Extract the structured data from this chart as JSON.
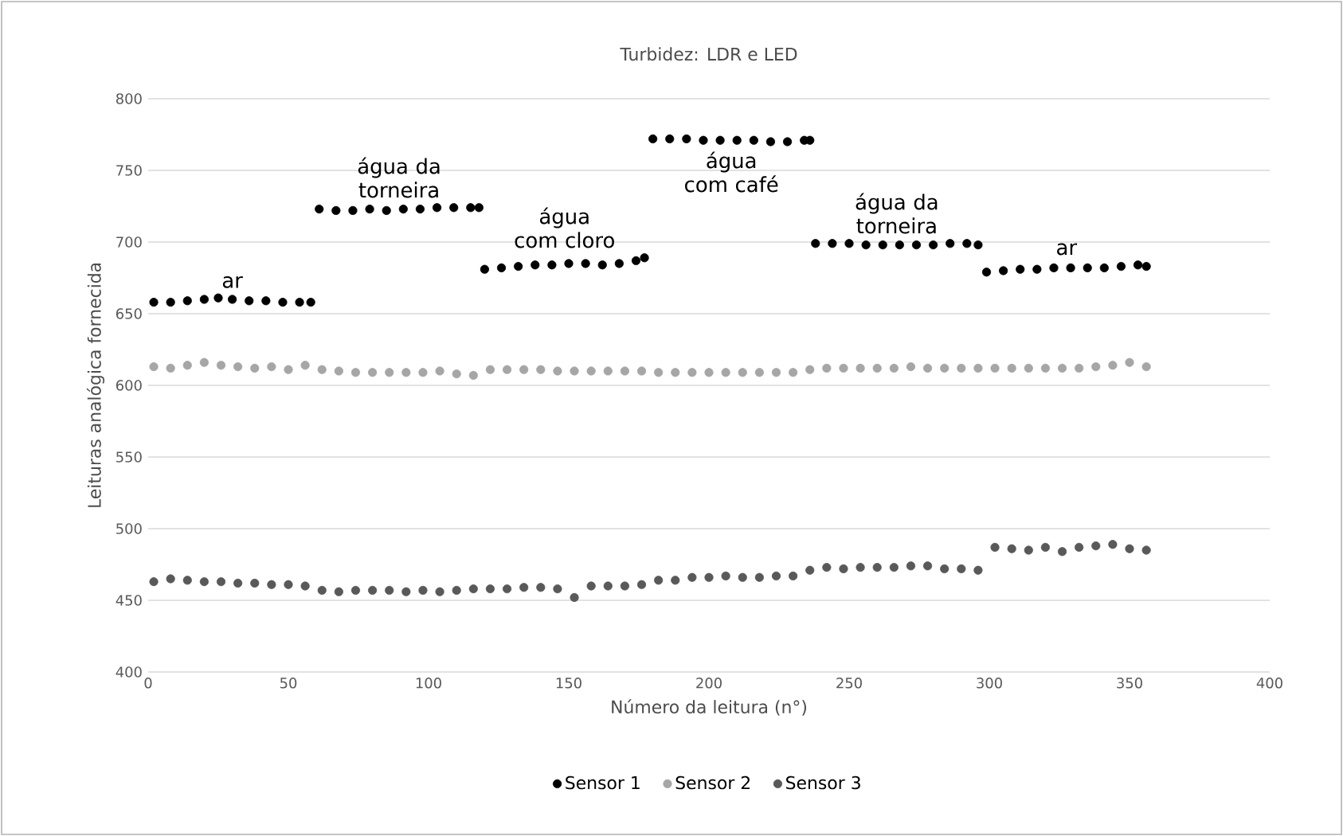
{
  "chart_data": {
    "type": "scatter",
    "title": "Turbidez: LDR e LED",
    "xlabel": "Número da leitura (n°)",
    "ylabel": "Leituras analógica fornecida",
    "xlim": [
      0,
      400
    ],
    "ylim": [
      400,
      800
    ],
    "xticks": [
      0,
      50,
      100,
      150,
      200,
      250,
      300,
      350,
      400
    ],
    "yticks": [
      400,
      450,
      500,
      550,
      600,
      650,
      700,
      750,
      800
    ],
    "grid": "y",
    "legend": "bottom",
    "marker": "circle",
    "series": [
      {
        "name": "Sensor 1",
        "color": "#000000",
        "x": [
          2,
          8,
          14,
          20,
          25,
          30,
          36,
          42,
          48,
          54,
          58,
          61,
          67,
          73,
          79,
          85,
          91,
          97,
          103,
          109,
          115,
          118,
          120,
          126,
          132,
          138,
          144,
          150,
          156,
          162,
          168,
          174,
          177,
          180,
          186,
          192,
          198,
          204,
          210,
          216,
          222,
          228,
          234,
          236,
          238,
          244,
          250,
          256,
          262,
          268,
          274,
          280,
          286,
          292,
          296,
          299,
          305,
          311,
          317,
          323,
          329,
          335,
          341,
          347,
          353,
          356
        ],
        "values": [
          658,
          658,
          659,
          660,
          661,
          660,
          659,
          659,
          658,
          658,
          658,
          723,
          722,
          722,
          723,
          722,
          723,
          723,
          724,
          724,
          724,
          724,
          681,
          682,
          683,
          684,
          684,
          685,
          685,
          684,
          685,
          687,
          689,
          772,
          772,
          772,
          771,
          771,
          771,
          771,
          770,
          770,
          771,
          771,
          699,
          699,
          699,
          698,
          698,
          698,
          698,
          698,
          699,
          699,
          698,
          679,
          680,
          681,
          681,
          682,
          682,
          682,
          682,
          683,
          684,
          683
        ]
      },
      {
        "name": "Sensor 2",
        "color": "#a6a6a6",
        "x": [
          2,
          8,
          14,
          20,
          26,
          32,
          38,
          44,
          50,
          56,
          62,
          68,
          74,
          80,
          86,
          92,
          98,
          104,
          110,
          116,
          122,
          128,
          134,
          140,
          146,
          152,
          158,
          164,
          170,
          176,
          182,
          188,
          194,
          200,
          206,
          212,
          218,
          224,
          230,
          236,
          242,
          248,
          254,
          260,
          266,
          272,
          278,
          284,
          290,
          296,
          302,
          308,
          314,
          320,
          326,
          332,
          338,
          344,
          350,
          356
        ],
        "values": [
          613,
          612,
          614,
          616,
          614,
          613,
          612,
          613,
          611,
          614,
          611,
          610,
          609,
          609,
          609,
          609,
          609,
          610,
          608,
          607,
          611,
          611,
          611,
          611,
          610,
          610,
          610,
          610,
          610,
          610,
          609,
          609,
          609,
          609,
          609,
          609,
          609,
          609,
          609,
          611,
          612,
          612,
          612,
          612,
          612,
          613,
          612,
          612,
          612,
          612,
          612,
          612,
          612,
          612,
          612,
          612,
          613,
          614,
          616,
          613
        ]
      },
      {
        "name": "Sensor 3",
        "color": "#595959",
        "x": [
          2,
          8,
          14,
          20,
          26,
          32,
          38,
          44,
          50,
          56,
          62,
          68,
          74,
          80,
          86,
          92,
          98,
          104,
          110,
          116,
          122,
          128,
          134,
          140,
          146,
          152,
          158,
          164,
          170,
          176,
          182,
          188,
          194,
          200,
          206,
          212,
          218,
          224,
          230,
          236,
          242,
          248,
          254,
          260,
          266,
          272,
          278,
          284,
          290,
          296,
          302,
          308,
          314,
          320,
          326,
          332,
          338,
          344,
          350,
          356
        ],
        "values": [
          463,
          465,
          464,
          463,
          463,
          462,
          462,
          461,
          461,
          460,
          457,
          456,
          457,
          457,
          457,
          456,
          457,
          456,
          457,
          458,
          458,
          458,
          459,
          459,
          458,
          452,
          460,
          460,
          460,
          461,
          464,
          464,
          466,
          466,
          467,
          466,
          466,
          467,
          467,
          471,
          473,
          472,
          473,
          473,
          473,
          474,
          474,
          472,
          472,
          471,
          487,
          486,
          485,
          487,
          484,
          487,
          488,
          489,
          486,
          485
        ]
      }
    ],
    "annotations": [
      "ar",
      "água da torneira",
      "água com cloro",
      "água com café",
      "água da torneira",
      "ar"
    ]
  }
}
